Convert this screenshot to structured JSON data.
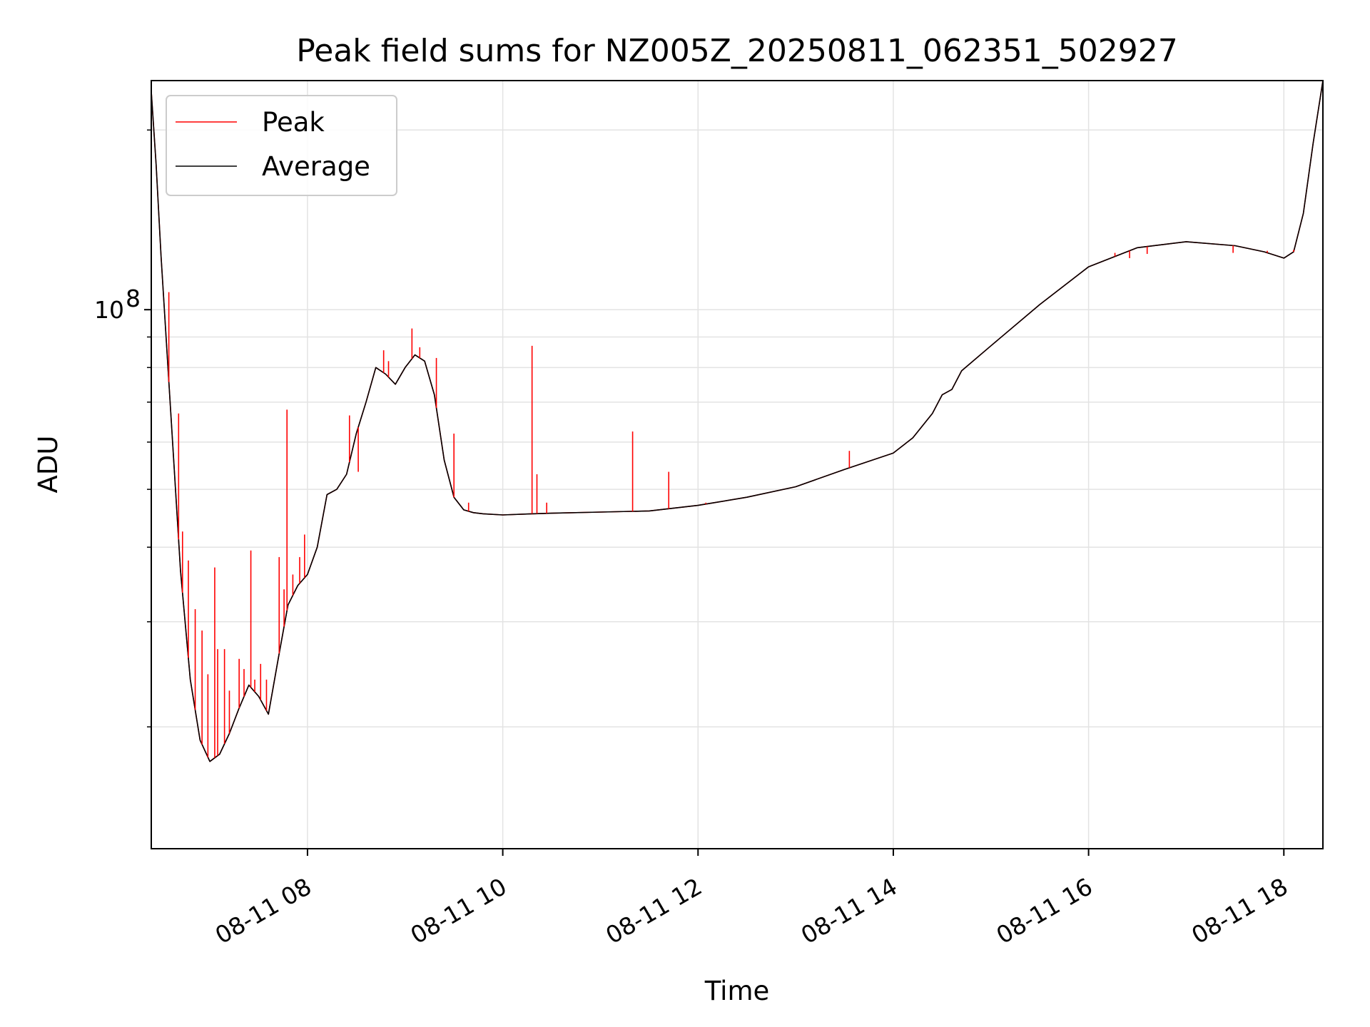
{
  "chart_data": {
    "type": "line",
    "title": "Peak field sums for NZ005Z_20250811_062351_502927",
    "xlabel": "Time",
    "ylabel": "ADU",
    "x_unit": "hours (08-11)",
    "xlim": [
      6.4,
      18.4
    ],
    "x_ticks": [
      8,
      10,
      12,
      14,
      16,
      18
    ],
    "x_tick_labels": [
      "08-11 08",
      "08-11 10",
      "08-11 12",
      "08-11 14",
      "08-11 16",
      "08-11 18"
    ],
    "y_scale": "log",
    "ylim": [
      12500000,
      242000000
    ],
    "y_major_ticks": [
      100000000
    ],
    "y_major_tick_labels": [
      "10",
      "8"
    ],
    "y_minor_ticks": [
      20000000,
      30000000,
      40000000,
      50000000,
      60000000,
      70000000,
      80000000,
      90000000,
      200000000
    ],
    "grid": true,
    "legend_position": "upper-left",
    "series": [
      {
        "name": "Peak",
        "color": "#ff0000",
        "x": [
          6.4,
          6.45,
          6.5,
          6.6,
          6.7,
          6.8,
          6.9,
          7.0,
          7.1,
          7.2,
          7.3,
          7.4,
          7.5,
          7.6,
          7.7,
          7.8,
          7.9,
          8.0,
          8.1,
          8.2,
          8.3,
          8.4,
          8.5,
          8.6,
          8.7,
          8.8,
          8.9,
          9.0,
          9.1,
          9.2,
          9.3,
          9.4,
          9.5,
          9.6,
          9.7,
          9.8,
          10.0,
          10.3,
          10.5,
          11.0,
          11.5,
          12.0,
          12.5,
          13.0,
          13.5,
          14.0,
          14.2,
          14.4,
          14.5,
          14.6,
          14.7,
          15.0,
          15.5,
          16.0,
          16.5,
          17.0,
          17.5,
          17.8,
          18.0,
          18.1,
          18.2,
          18.3,
          18.4
        ],
        "y": [
          232000000,
          175000000,
          123000000,
          67000000,
          36500000,
          24000000,
          19000000,
          17500000,
          18000000,
          19500000,
          21500000,
          23500000,
          22500000,
          21000000,
          26000000,
          32000000,
          34500000,
          36000000,
          40000000,
          49000000,
          50000000,
          53000000,
          62000000,
          70000000,
          80000000,
          78000000,
          75000000,
          80000000,
          84000000,
          82000000,
          72000000,
          56000000,
          48500000,
          46200000,
          45700000,
          45500000,
          45300000,
          45500000,
          45600000,
          45800000,
          46000000,
          47000000,
          48500000,
          50500000,
          54000000,
          57500000,
          61000000,
          67000000,
          72000000,
          73500000,
          79000000,
          87000000,
          102000000,
          118000000,
          127000000,
          130000000,
          128000000,
          125000000,
          122000000,
          125000000,
          145000000,
          190000000,
          242000000
        ],
        "spikes": [
          {
            "x": 6.58,
            "y": 107000000
          },
          {
            "x": 6.68,
            "y": 67000000
          },
          {
            "x": 6.72,
            "y": 42500000
          },
          {
            "x": 6.78,
            "y": 38000000
          },
          {
            "x": 6.85,
            "y": 31500000
          },
          {
            "x": 6.92,
            "y": 29000000
          },
          {
            "x": 6.98,
            "y": 24500000
          },
          {
            "x": 7.05,
            "y": 37000000
          },
          {
            "x": 7.08,
            "y": 27000000
          },
          {
            "x": 7.15,
            "y": 27000000
          },
          {
            "x": 7.2,
            "y": 23000000
          },
          {
            "x": 7.3,
            "y": 26000000
          },
          {
            "x": 7.35,
            "y": 25000000
          },
          {
            "x": 7.42,
            "y": 39500000
          },
          {
            "x": 7.46,
            "y": 24000000
          },
          {
            "x": 7.52,
            "y": 25500000
          },
          {
            "x": 7.58,
            "y": 24000000
          },
          {
            "x": 7.71,
            "y": 38500000
          },
          {
            "x": 7.76,
            "y": 34000000
          },
          {
            "x": 7.79,
            "y": 68000000
          },
          {
            "x": 7.85,
            "y": 36000000
          },
          {
            "x": 7.92,
            "y": 38500000
          },
          {
            "x": 7.97,
            "y": 42000000
          },
          {
            "x": 8.43,
            "y": 66500000
          },
          {
            "x": 8.52,
            "y": 53500000
          },
          {
            "x": 8.78,
            "y": 85500000
          },
          {
            "x": 8.83,
            "y": 82000000
          },
          {
            "x": 9.07,
            "y": 93000000
          },
          {
            "x": 9.15,
            "y": 86500000
          },
          {
            "x": 9.32,
            "y": 83000000
          },
          {
            "x": 9.5,
            "y": 62000000
          },
          {
            "x": 9.65,
            "y": 47500000
          },
          {
            "x": 10.3,
            "y": 87000000
          },
          {
            "x": 10.35,
            "y": 53000000
          },
          {
            "x": 10.45,
            "y": 47500000
          },
          {
            "x": 11.33,
            "y": 62500000
          },
          {
            "x": 11.7,
            "y": 53500000
          },
          {
            "x": 12.08,
            "y": 47500000
          },
          {
            "x": 13.55,
            "y": 58000000
          },
          {
            "x": 16.27,
            "y": 124500000
          },
          {
            "x": 16.42,
            "y": 122000000
          },
          {
            "x": 16.6,
            "y": 124000000
          },
          {
            "x": 17.48,
            "y": 124500000
          },
          {
            "x": 17.83,
            "y": 125500000
          },
          {
            "x": 18.1,
            "y": 126000000
          }
        ]
      },
      {
        "name": "Average",
        "color": "#000000",
        "x": [
          6.4,
          6.45,
          6.5,
          6.6,
          6.7,
          6.8,
          6.9,
          7.0,
          7.1,
          7.2,
          7.3,
          7.4,
          7.5,
          7.6,
          7.7,
          7.8,
          7.9,
          8.0,
          8.1,
          8.2,
          8.3,
          8.4,
          8.5,
          8.6,
          8.7,
          8.8,
          8.9,
          9.0,
          9.1,
          9.2,
          9.3,
          9.4,
          9.5,
          9.6,
          9.7,
          9.8,
          10.0,
          10.3,
          10.5,
          11.0,
          11.5,
          12.0,
          12.5,
          13.0,
          13.5,
          14.0,
          14.2,
          14.4,
          14.5,
          14.6,
          14.7,
          15.0,
          15.5,
          16.0,
          16.5,
          17.0,
          17.5,
          17.8,
          18.0,
          18.1,
          18.2,
          18.3,
          18.4
        ],
        "y": [
          232000000,
          175000000,
          123000000,
          67000000,
          36500000,
          24000000,
          19000000,
          17500000,
          18000000,
          19500000,
          21500000,
          23500000,
          22500000,
          21000000,
          26000000,
          32000000,
          34500000,
          36000000,
          40000000,
          49000000,
          50000000,
          53000000,
          62000000,
          70000000,
          80000000,
          78000000,
          75000000,
          80000000,
          84000000,
          82000000,
          72000000,
          56000000,
          48500000,
          46200000,
          45700000,
          45500000,
          45300000,
          45500000,
          45600000,
          45800000,
          46000000,
          47000000,
          48500000,
          50500000,
          54000000,
          57500000,
          61000000,
          67000000,
          72000000,
          73500000,
          79000000,
          87000000,
          102000000,
          118000000,
          127000000,
          130000000,
          128000000,
          125000000,
          122000000,
          125000000,
          145000000,
          190000000,
          242000000
        ]
      }
    ]
  }
}
